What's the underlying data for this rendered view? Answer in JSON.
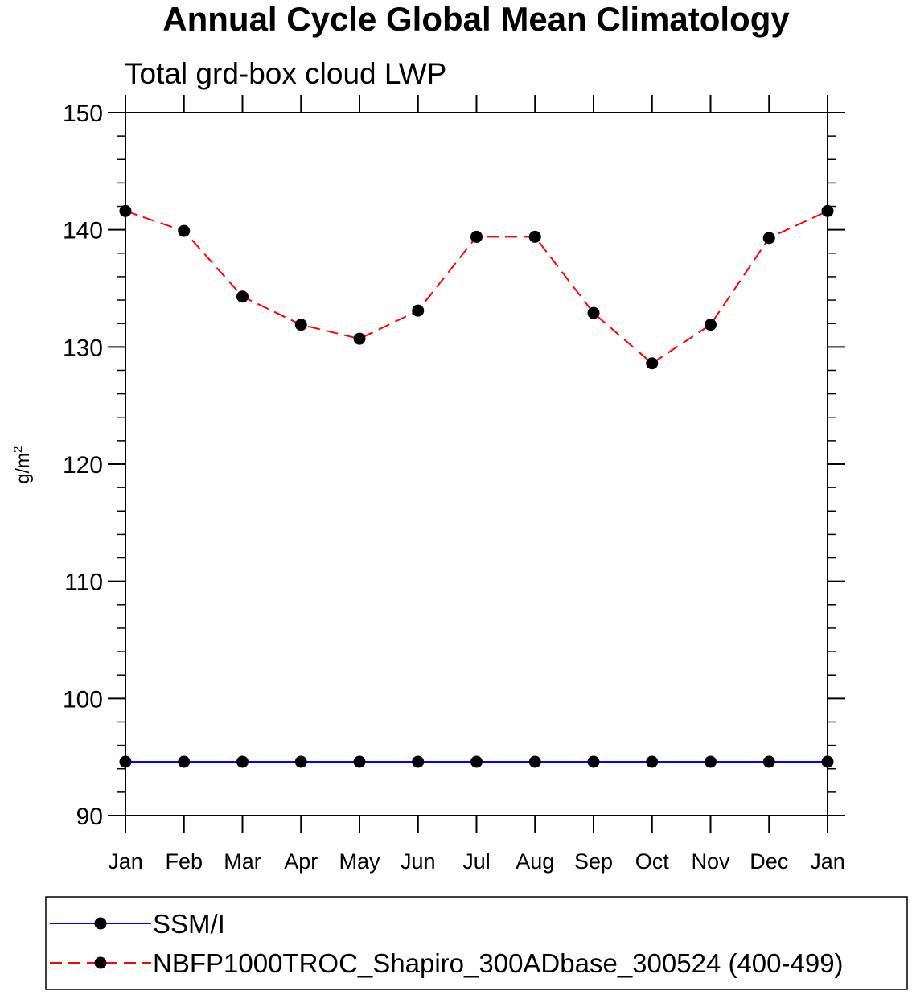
{
  "chart_data": {
    "type": "line",
    "title": "Annual Cycle Global Mean Climatology",
    "subtitle": "Total grd-box cloud LWP",
    "ylabel": "g/m",
    "ylabel_superscript": "2",
    "categories": [
      "Jan",
      "Feb",
      "Mar",
      "Apr",
      "May",
      "Jun",
      "Jul",
      "Aug",
      "Sep",
      "Oct",
      "Nov",
      "Dec",
      "Jan"
    ],
    "ylim": [
      90,
      150
    ],
    "yticks": [
      90,
      100,
      110,
      120,
      130,
      140,
      150
    ],
    "grid": false,
    "legend_position": "bottom",
    "series": [
      {
        "name": "SSM/I",
        "color": "#0000ff",
        "line_style": "solid",
        "marker": "filled-circle",
        "values": [
          94.6,
          94.6,
          94.6,
          94.6,
          94.6,
          94.6,
          94.6,
          94.6,
          94.6,
          94.6,
          94.6,
          94.6,
          94.6
        ]
      },
      {
        "name": "NBFP1000TROC_Shapiro_300ADbase_300524 (400-499)",
        "color": "#ff0000",
        "line_style": "dashed",
        "marker": "filled-circle",
        "values": [
          141.6,
          139.9,
          134.3,
          131.9,
          130.7,
          133.1,
          139.4,
          139.4,
          132.9,
          128.6,
          131.9,
          139.3,
          141.6
        ]
      }
    ]
  }
}
